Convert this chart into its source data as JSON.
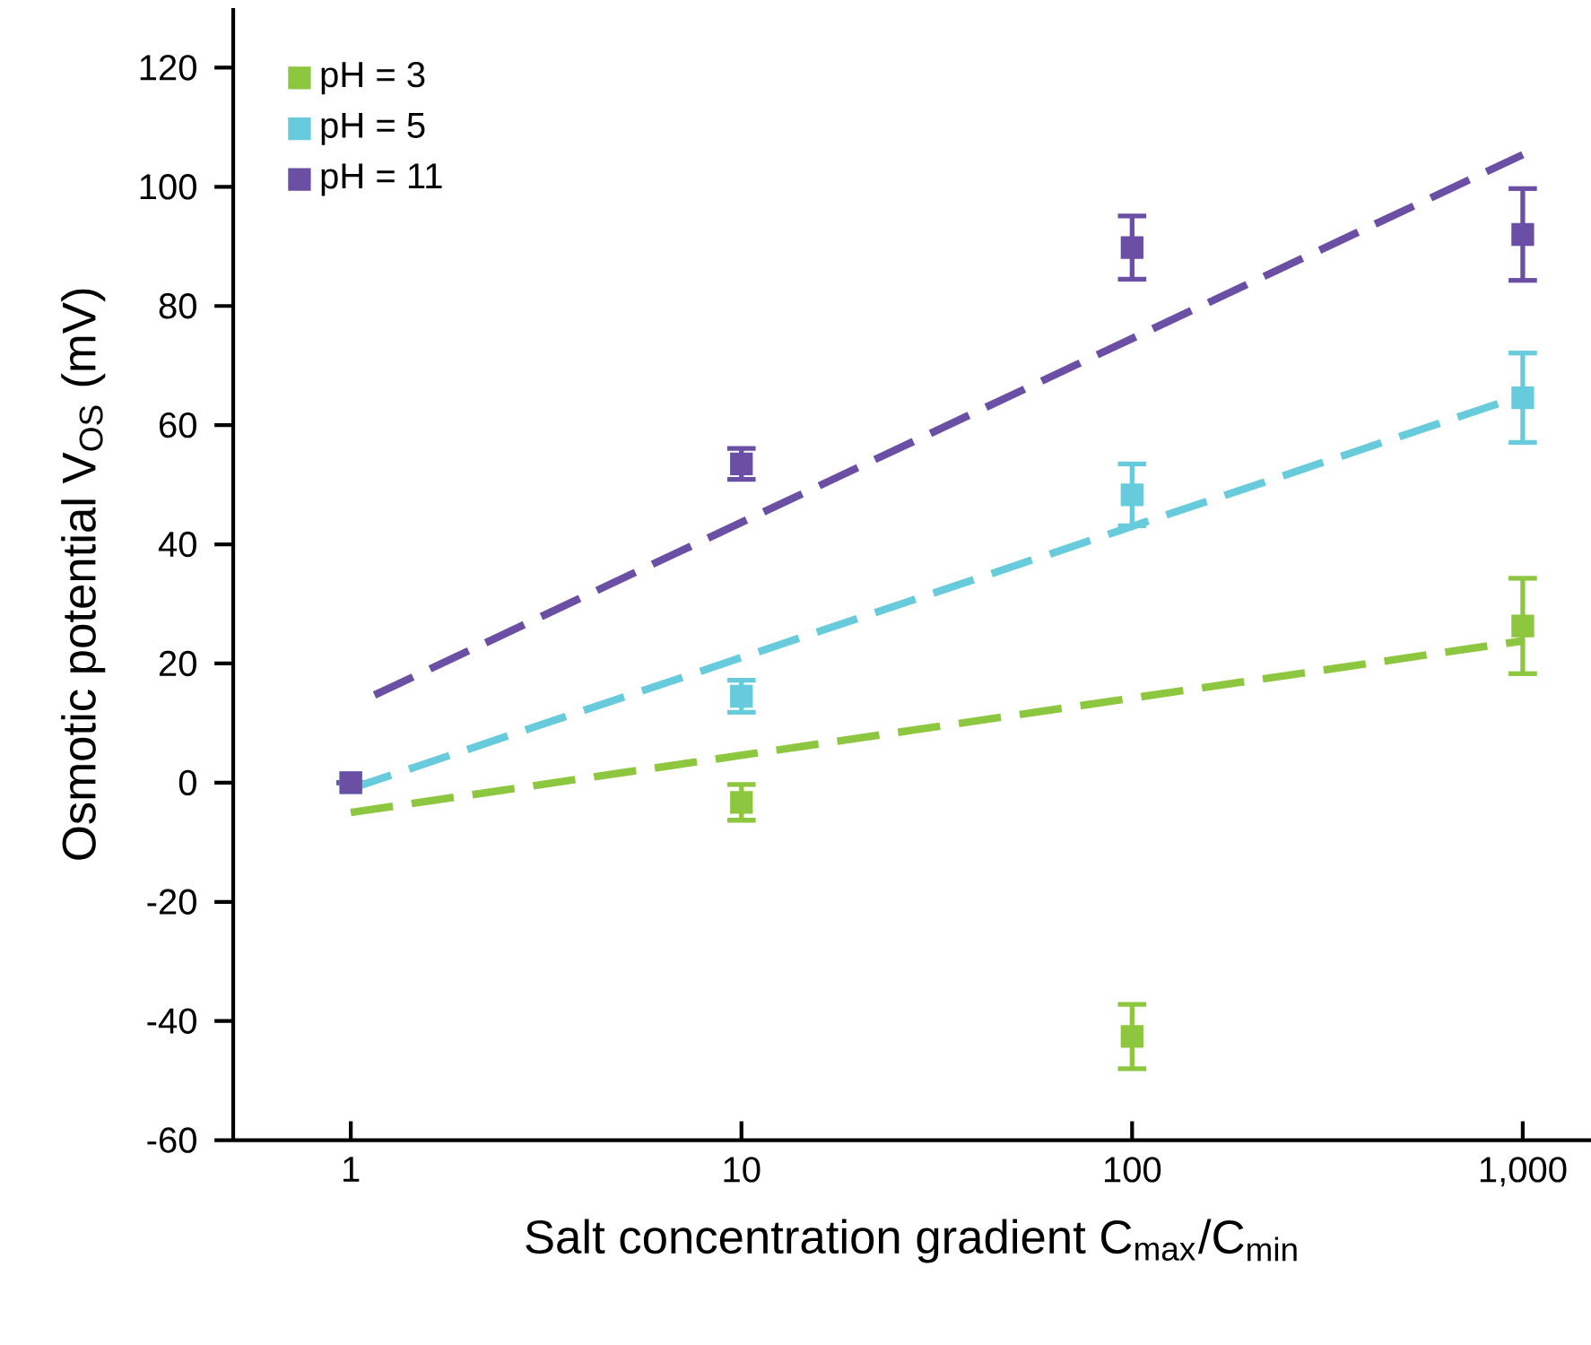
{
  "chart_data": {
    "type": "scatter",
    "xlabel": "Salt concentration gradient C$_{max}$/C$_{min}$",
    "ylabel": "Osmotic potential V$_{OS}$ (mV)",
    "log": "x",
    "xlim": [
      0.5,
      1500
    ],
    "ylim": [
      -60,
      130
    ],
    "xticks": [
      1,
      10,
      100,
      {
        "value": 1000,
        "label": "1,000"
      }
    ],
    "yticks": [
      -60,
      -40,
      -20,
      0,
      20,
      40,
      60,
      80,
      100,
      120
    ],
    "legend": "top left",
    "marker": "square",
    "grid": false,
    "series": [
      {
        "name": "pH = 3",
        "color": "#8dc63f",
        "x": [
          10,
          100,
          1000
        ],
        "values": [
          -3.3,
          -42.6,
          26.3
        ],
        "errors": [
          3,
          5.4,
          8
        ]
      },
      {
        "name": "pH = 5",
        "color": "#67cbdc",
        "x": [
          1,
          10,
          100,
          1000
        ],
        "values": [
          0,
          14.5,
          48.3,
          64.6
        ],
        "errors": [
          null,
          2.7,
          5.2,
          7.5
        ]
      },
      {
        "name": "pH = 11",
        "color": "#6a4fa5",
        "x": [
          1,
          10,
          100,
          1000
        ],
        "values": [
          0,
          53.5,
          89.8,
          92
        ],
        "errors": [
          null,
          2.6,
          5.3,
          7.7
        ]
      },
      {
        "type": "line",
        "color": "#8dc63f",
        "line_style": "dashed",
        "marker": "none",
        "x": [
          1,
          1000
        ],
        "values": [
          -5,
          23.8
        ]
      },
      {
        "type": "line",
        "color": "#67cbdc",
        "line_style": "dashed",
        "marker": "none",
        "x": [
          1,
          1000
        ],
        "values": [
          -1,
          65
        ]
      },
      {
        "type": "line",
        "color": "#6a4fa5",
        "line_style": "dashed",
        "marker": "none",
        "x": [
          1.15,
          1000
        ],
        "values": [
          14.7,
          105.4
        ]
      }
    ]
  }
}
